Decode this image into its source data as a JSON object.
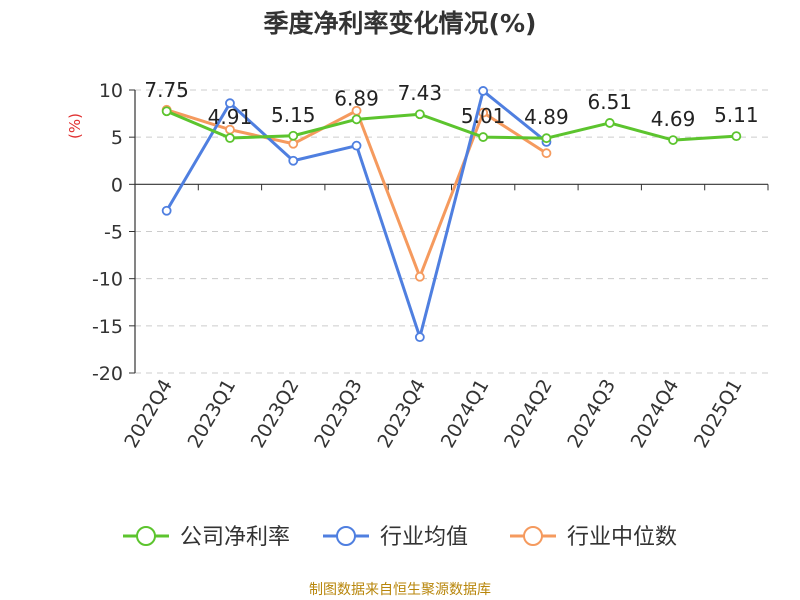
{
  "chart_data": {
    "type": "line",
    "title": "季度净利率变化情况(%)",
    "ylabel": "(%)",
    "ylim": [
      -20,
      10
    ],
    "yticks": [
      10,
      5,
      0,
      -5,
      -10,
      -15,
      -20
    ],
    "grid": true,
    "legend_position": "bottom",
    "categories": [
      "2022Q4",
      "2023Q1",
      "2023Q2",
      "2023Q3",
      "2023Q4",
      "2024Q1",
      "2024Q2",
      "2024Q3",
      "2024Q4",
      "2025Q1"
    ],
    "series": [
      {
        "name": "公司净利率",
        "color": "#5cc42e",
        "labeled": true,
        "values": [
          7.75,
          4.91,
          5.15,
          6.89,
          7.43,
          5.01,
          4.89,
          6.51,
          4.69,
          5.11
        ]
      },
      {
        "name": "行业均值",
        "color": "#4f7fe0",
        "labeled": false,
        "values": [
          -2.8,
          8.6,
          2.5,
          4.1,
          -16.2,
          9.9,
          4.5,
          null,
          null,
          null
        ]
      },
      {
        "name": "行业中位数",
        "color": "#f59a5e",
        "labeled": false,
        "values": [
          7.9,
          5.8,
          4.3,
          7.8,
          -9.8,
          7.6,
          3.3,
          null,
          null,
          null
        ]
      }
    ],
    "source": "制图数据来自恒生聚源数据库"
  }
}
